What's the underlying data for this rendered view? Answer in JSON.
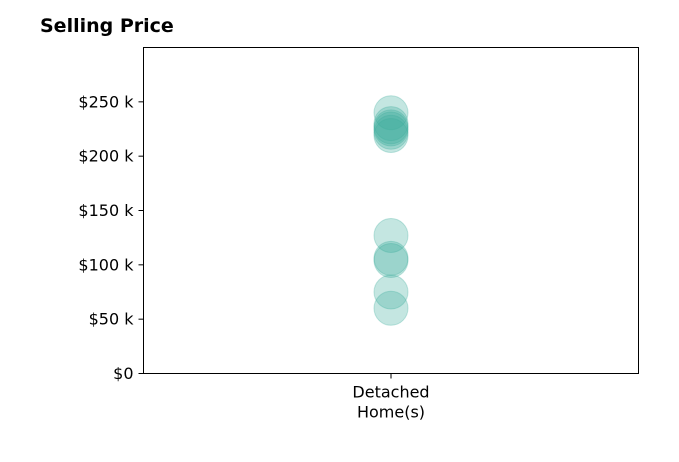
{
  "chart_data": {
    "type": "scatter",
    "title": "Selling Price",
    "xlabel": "",
    "ylabel": "",
    "categories": [
      [
        "Detached",
        "Home(s)"
      ]
    ],
    "ylim": [
      0,
      300000
    ],
    "yticks": [
      0,
      50000,
      100000,
      150000,
      200000,
      250000
    ],
    "ytick_labels": [
      "$0",
      "$50 k",
      "$100 k",
      "$150 k",
      "$200 k",
      "$250 k"
    ],
    "grid": false,
    "series": [
      {
        "category_index": 0,
        "values": [
          240000,
          230000,
          227000,
          225000,
          222000,
          219000,
          127000,
          106000,
          104000,
          75000,
          60000
        ],
        "color": "#3aab9b",
        "opacity": 0.3
      }
    ]
  }
}
